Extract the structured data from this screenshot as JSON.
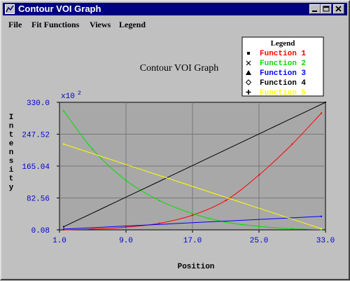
{
  "window": {
    "title": "Contour VOI Graph"
  },
  "menu": {
    "items": [
      "File",
      "Fit Functions",
      "Views",
      "Legend"
    ]
  },
  "colors": {
    "f1": "#ff0000",
    "f2": "#00dd00",
    "f3": "#0000ff",
    "f4": "#000000",
    "f5": "#ffff00",
    "axis_text": "#0000cc"
  },
  "chart_data": {
    "type": "line",
    "title": "Contour VOI Graph",
    "xlabel": "Position",
    "ylabel": "Intensity",
    "y_multiplier": "x10",
    "y_exponent": "2",
    "xlim": [
      1.0,
      33.0
    ],
    "ylim": [
      0.08,
      330.0
    ],
    "x_ticks": [
      "1.0",
      "9.0",
      "17.0",
      "25.0",
      "33.0"
    ],
    "y_ticks": [
      "0.08",
      "82.56",
      "165.04",
      "247.52",
      "330.0"
    ],
    "grid": true,
    "legend_title": "Legend",
    "legend_position": "top-right",
    "series": [
      {
        "name": "Function 1",
        "marker": "square",
        "x": [
          1.5,
          5,
          9,
          13,
          17,
          21,
          25,
          29,
          32.5
        ],
        "y": [
          0.1,
          2,
          7,
          17,
          38,
          76,
          142,
          222,
          302
        ]
      },
      {
        "name": "Function 2",
        "marker": "x",
        "x": [
          1.5,
          5,
          9,
          13,
          17,
          21,
          25,
          29,
          32.5
        ],
        "y": [
          308,
          208,
          128,
          76,
          42,
          20,
          9,
          3,
          1
        ]
      },
      {
        "name": "Function 3",
        "marker": "triangle",
        "x": [
          1.5,
          32.5
        ],
        "y": [
          2,
          35
        ]
      },
      {
        "name": "Function 4",
        "marker": "diamond",
        "x": [
          1.5,
          33.0
        ],
        "y": [
          8,
          330
        ]
      },
      {
        "name": "Function 5",
        "marker": "plus",
        "x": [
          1.5,
          32.5
        ],
        "y": [
          222,
          3
        ]
      }
    ]
  }
}
